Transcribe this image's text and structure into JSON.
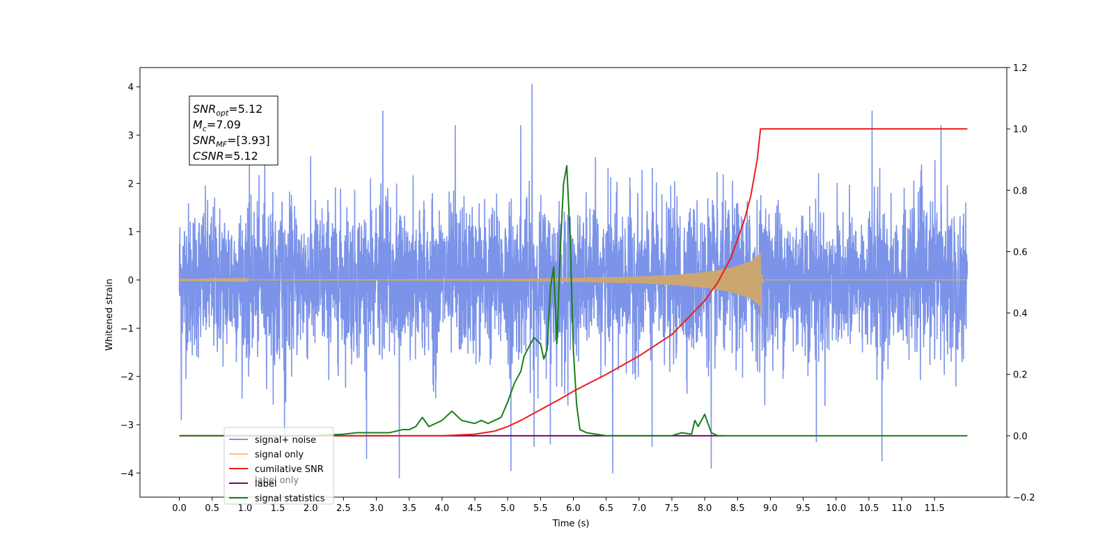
{
  "chart_data": {
    "type": "line",
    "xlabel": "Time (s)",
    "ylabel_left": "Whitened strain",
    "ylabel_right": "",
    "xlim": [
      -0.6,
      12.6
    ],
    "ylim_left": [
      -4.5,
      4.4
    ],
    "ylim_right": [
      -0.2,
      1.2
    ],
    "x_ticks": [
      0.0,
      0.5,
      1.0,
      1.5,
      2.0,
      2.5,
      3.0,
      3.5,
      4.0,
      4.5,
      5.0,
      5.5,
      6.0,
      6.5,
      7.0,
      7.5,
      8.0,
      8.5,
      9.0,
      9.5,
      10.0,
      10.5,
      11.0,
      11.5
    ],
    "x_tick_labels": [
      "0.0",
      "0.5",
      "1.0",
      "1.5",
      "2.0",
      "2.5",
      "3.0",
      "3.5",
      "4.0",
      "4.5",
      "5.0",
      "5.5",
      "6.0",
      "6.5",
      "7.0",
      "7.5",
      "8.0",
      "8.5",
      "9.0",
      "9.5",
      "10.0",
      "10.5",
      "11.0",
      "11.5"
    ],
    "y_ticks_left": [
      -4,
      -3,
      -2,
      -1,
      0,
      1,
      2,
      3,
      4
    ],
    "y_tick_labels_left": [
      "−4",
      "−3",
      "−2",
      "−1",
      "0",
      "1",
      "2",
      "3",
      "4"
    ],
    "y_ticks_right": [
      -0.2,
      0.0,
      0.2,
      0.4,
      0.6,
      0.8,
      1.0,
      1.2
    ],
    "y_tick_labels_right": [
      "−0.2",
      "0.0",
      "0.2",
      "0.4",
      "0.6",
      "0.8",
      "1.0",
      "1.2"
    ],
    "grid": false,
    "legend_position": "lower-left",
    "series": [
      {
        "name": "signal+ noise",
        "axis": "left",
        "color": "#7b93e8",
        "style": "noise",
        "x_range": [
          0.0,
          12.0
        ],
        "typical_envelope": [
          -2.0,
          2.1
        ],
        "extreme_peaks": [
          {
            "x": 0.03,
            "y": 2.2
          },
          {
            "x": 0.03,
            "y": -2.9
          },
          {
            "x": 1.3,
            "y": 3.0
          },
          {
            "x": 1.6,
            "y": -3.3
          },
          {
            "x": 2.85,
            "y": -3.7
          },
          {
            "x": 3.1,
            "y": 3.5
          },
          {
            "x": 3.35,
            "y": -4.1
          },
          {
            "x": 4.2,
            "y": 3.2
          },
          {
            "x": 5.05,
            "y": -3.95
          },
          {
            "x": 5.2,
            "y": 3.2
          },
          {
            "x": 5.37,
            "y": 4.05
          },
          {
            "x": 5.4,
            "y": -3.45
          },
          {
            "x": 5.65,
            "y": -3.4
          },
          {
            "x": 6.6,
            "y": -4.0
          },
          {
            "x": 7.2,
            "y": 3.2
          },
          {
            "x": 7.2,
            "y": -3.45
          },
          {
            "x": 8.1,
            "y": -3.9
          },
          {
            "x": 9.7,
            "y": -3.35
          },
          {
            "x": 10.55,
            "y": 3.5
          },
          {
            "x": 10.7,
            "y": -3.75
          },
          {
            "x": 11.6,
            "y": 3.2
          }
        ]
      },
      {
        "name": "signal only",
        "axis": "left",
        "color": "#ffc46b",
        "style": "chirp",
        "merger_time": 8.85,
        "chirp_points": [
          {
            "x": 0.0,
            "y": 0.003
          },
          {
            "x": 5.0,
            "y": 0.02
          },
          {
            "x": 6.0,
            "y": 0.04
          },
          {
            "x": 7.0,
            "y": 0.07
          },
          {
            "x": 7.5,
            "y": 0.1
          },
          {
            "x": 8.0,
            "y": 0.16
          },
          {
            "x": 8.4,
            "y": 0.25
          },
          {
            "x": 8.7,
            "y": 0.38
          },
          {
            "x": 8.85,
            "y": 0.55
          },
          {
            "x": 8.87,
            "y": -0.78
          },
          {
            "x": 8.9,
            "y": -0.05
          },
          {
            "x": 12.0,
            "y": 0.0
          }
        ]
      },
      {
        "name": "cumilative SNR",
        "axis": "right",
        "color": "#ee1c1c",
        "x": [
          0.0,
          4.0,
          4.5,
          4.8,
          5.0,
          5.2,
          5.5,
          5.8,
          6.0,
          6.5,
          7.0,
          7.5,
          8.0,
          8.2,
          8.4,
          8.6,
          8.7,
          8.8,
          8.85,
          9.0,
          10.0,
          11.0,
          12.0
        ],
        "y": [
          0.0,
          0.0,
          0.005,
          0.015,
          0.03,
          0.05,
          0.085,
          0.12,
          0.145,
          0.2,
          0.26,
          0.33,
          0.44,
          0.5,
          0.58,
          0.7,
          0.78,
          0.9,
          1.0,
          1.0,
          1.0,
          1.0,
          1.0
        ]
      },
      {
        "name": "label only",
        "axis": "right",
        "color": "#6a0d6a",
        "x": [
          0.0,
          8.3
        ],
        "y": [
          0.0,
          0.0
        ]
      },
      {
        "name": "signal statistics",
        "axis": "right",
        "color": "#1a7d1a",
        "x": [
          0.0,
          2.0,
          2.5,
          2.7,
          2.9,
          3.0,
          3.2,
          3.4,
          3.5,
          3.6,
          3.7,
          3.8,
          3.9,
          4.0,
          4.1,
          4.15,
          4.2,
          4.3,
          4.5,
          4.6,
          4.7,
          4.9,
          5.0,
          5.1,
          5.2,
          5.25,
          5.3,
          5.4,
          5.5,
          5.55,
          5.6,
          5.65,
          5.7,
          5.75,
          5.8,
          5.85,
          5.9,
          5.95,
          6.0,
          6.05,
          6.1,
          6.2,
          6.5,
          7.0,
          7.5,
          7.65,
          7.8,
          7.85,
          7.9,
          8.0,
          8.1,
          8.2,
          9.0,
          12.0
        ],
        "y": [
          0.0,
          0.0,
          0.005,
          0.01,
          0.01,
          0.01,
          0.01,
          0.02,
          0.02,
          0.03,
          0.06,
          0.03,
          0.04,
          0.05,
          0.07,
          0.08,
          0.07,
          0.05,
          0.04,
          0.05,
          0.04,
          0.06,
          0.11,
          0.17,
          0.21,
          0.26,
          0.28,
          0.32,
          0.3,
          0.25,
          0.28,
          0.48,
          0.55,
          0.3,
          0.6,
          0.82,
          0.88,
          0.65,
          0.28,
          0.1,
          0.02,
          0.01,
          0.0,
          0.0,
          0.0,
          0.01,
          0.005,
          0.05,
          0.03,
          0.07,
          0.01,
          0.0,
          0.0,
          0.0
        ]
      }
    ],
    "legend_entries": [
      {
        "label": "signal+ noise",
        "color": "#7b93e8"
      },
      {
        "label": "signal only",
        "color": "#ffc46b"
      },
      {
        "label": "cumilative SNR",
        "color": "#ee1c1c"
      },
      {
        "label": "label",
        "color": "#6a0d6a"
      },
      {
        "label": "signal statistics",
        "color": "#1a7d1a"
      }
    ],
    "legend_hidden_labels": [
      "label only"
    ],
    "annotation": [
      {
        "sym": "SNR",
        "sub": "opt",
        "value": "=5.12"
      },
      {
        "sym": "M",
        "sub": "c",
        "value": "=7.09"
      },
      {
        "sym": "SNR",
        "sub": "MF",
        "value": "=[3.93]"
      },
      {
        "sym": "CSNR",
        "sub": "",
        "value": "=5.12"
      }
    ]
  }
}
